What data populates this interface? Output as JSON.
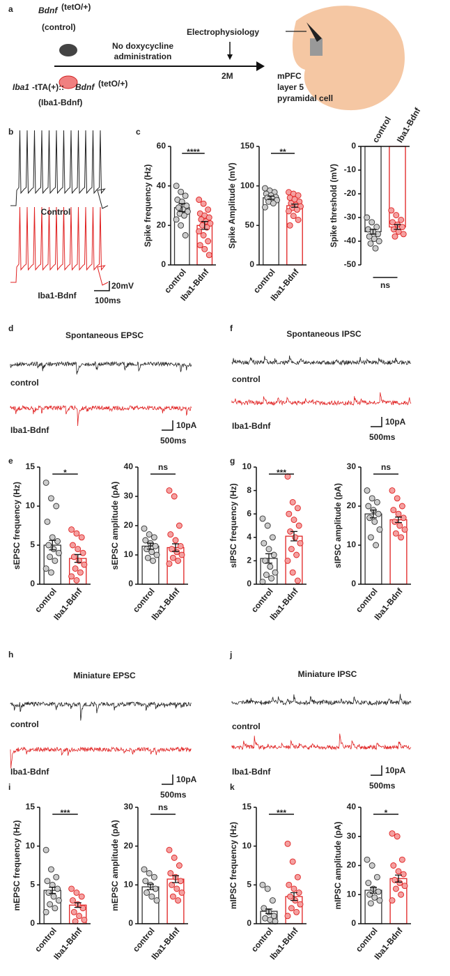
{
  "panel_letters": [
    "a",
    "b",
    "c",
    "d",
    "f",
    "e",
    "g",
    "h",
    "j",
    "i",
    "k"
  ],
  "panel_a": {
    "control_gene": "Bdnf",
    "control_genotype": "(tetO/+)",
    "control_label": "(control)",
    "treatment": [
      "No doxycycline",
      "administration"
    ],
    "procedure": "Electrophysiology",
    "timepoint": "2M",
    "tg_gene": "Iba1",
    "tg_construct": "-tTA(+)::",
    "tg_bdnf": "Bdnf",
    "tg_genotype": "(tetO/+)",
    "tg_label": "(Iba1-Bdnf)",
    "region": [
      "mPFC",
      "layer 5",
      "pyramidal cell"
    ]
  },
  "traces": [
    {
      "labels": [
        "Control",
        "Iba1-Bdnf"
      ],
      "scale": [
        "20mV",
        "100ms"
      ]
    },
    {
      "title": "Spontaneous EPSC",
      "labels": [
        "control",
        "Iba1-Bdnf"
      ],
      "scale": [
        "10pA",
        "500ms"
      ]
    },
    {
      "title": "Spontaneous IPSC",
      "labels": [
        "control",
        "Iba1-Bdnf"
      ],
      "scale": [
        "10pA",
        "500ms"
      ]
    },
    {
      "title": "Miniature EPSC",
      "labels": [
        "control",
        "Iba1-Bdnf"
      ],
      "scale": [
        "10pA",
        "500ms"
      ]
    },
    {
      "title": "Miniature IPSC",
      "labels": [
        "control",
        "Iba1-Bdnf"
      ],
      "scale": [
        "10pA",
        "500ms"
      ]
    }
  ],
  "chart_data": [
    {
      "type": "bar",
      "ylabel": "Spike frequency (Hz)",
      "categories": [
        "control",
        "Iba1-Bdnf"
      ],
      "values": [
        29,
        20
      ],
      "errors": [
        2,
        2
      ],
      "points": [
        [
          40,
          37,
          35,
          33,
          32,
          30,
          29,
          28,
          27,
          26,
          25,
          23,
          20,
          15
        ],
        [
          33,
          31,
          28,
          26,
          25,
          24,
          23,
          22,
          21,
          20,
          19,
          17,
          15,
          12,
          10,
          8,
          5
        ]
      ],
      "colors": [
        "#333333",
        "#e02020"
      ],
      "point_colors": [
        "#cccccc",
        "#f4a0a0"
      ],
      "ylim": [
        0,
        60
      ],
      "yticks": [
        0,
        20,
        40,
        60
      ],
      "significance": "****"
    },
    {
      "type": "bar",
      "ylabel": "Spike Amplitude (mV)",
      "categories": [
        "control",
        "Iba1-Bdnf"
      ],
      "values": [
        85,
        75
      ],
      "errors": [
        2,
        2
      ],
      "points": [
        [
          97,
          94,
          92,
          90,
          88,
          86,
          85,
          84,
          82,
          80,
          78,
          73
        ],
        [
          92,
          90,
          88,
          85,
          83,
          80,
          78,
          76,
          74,
          72,
          70,
          68,
          62,
          57,
          50
        ]
      ],
      "colors": [
        "#333333",
        "#e02020"
      ],
      "point_colors": [
        "#cccccc",
        "#f4a0a0"
      ],
      "ylim": [
        0,
        150
      ],
      "yticks": [
        0,
        50,
        100,
        150
      ],
      "significance": "**"
    },
    {
      "type": "bar",
      "ylabel": "Spike threshold (mV)",
      "categories": [
        "control",
        "Iba1-Bdnf"
      ],
      "values": [
        -36,
        -34
      ],
      "errors": [
        1,
        1
      ],
      "points": [
        [
          -30,
          -32,
          -34,
          -35,
          -36,
          -37,
          -38,
          -39,
          -40,
          -41,
          -43
        ],
        [
          -27,
          -29,
          -31,
          -32,
          -33,
          -34,
          -35,
          -36,
          -37,
          -38
        ]
      ],
      "colors": [
        "#333333",
        "#e02020"
      ],
      "point_colors": [
        "#cccccc",
        "#f4a0a0"
      ],
      "ylim": [
        -50,
        0
      ],
      "yticks": [
        0,
        -10,
        -20,
        -30,
        -40,
        -50
      ],
      "significance": "ns"
    },
    {
      "type": "bar",
      "ylabel": "sEPSC frequency (Hz)",
      "categories": [
        "control",
        "Iba1-Bdnf"
      ],
      "values": [
        5,
        3.3
      ],
      "errors": [
        0.6,
        0.5
      ],
      "points": [
        [
          13,
          11,
          10,
          8,
          6,
          5.5,
          5,
          4.5,
          4,
          3.5,
          3,
          2,
          1.5
        ],
        [
          7,
          6.5,
          6,
          5,
          4.5,
          4,
          3.5,
          3,
          2.5,
          2,
          1.5,
          1,
          0.5
        ]
      ],
      "colors": [
        "#333333",
        "#e02020"
      ],
      "point_colors": [
        "#cccccc",
        "#f4a0a0"
      ],
      "ylim": [
        0,
        15
      ],
      "yticks": [
        0,
        5,
        10,
        15
      ],
      "significance": "*"
    },
    {
      "type": "bar",
      "ylabel": "sEPSC amplitude (pA)",
      "categories": [
        "control",
        "Iba1-Bdnf"
      ],
      "values": [
        13,
        12.5
      ],
      "errors": [
        1,
        1.3
      ],
      "points": [
        [
          19,
          17,
          16,
          15,
          14,
          13,
          12,
          11,
          10,
          9,
          8
        ],
        [
          32,
          30,
          20,
          17,
          15,
          13,
          12,
          11,
          10,
          9,
          8,
          7
        ]
      ],
      "colors": [
        "#333333",
        "#e02020"
      ],
      "point_colors": [
        "#cccccc",
        "#f4a0a0"
      ],
      "ylim": [
        0,
        40
      ],
      "yticks": [
        0,
        10,
        20,
        30,
        40
      ],
      "significance": "ns"
    },
    {
      "type": "bar",
      "ylabel": "sIPSC frequency (Hz)",
      "categories": [
        "control",
        "Iba1-Bdnf"
      ],
      "values": [
        2.2,
        4.1
      ],
      "errors": [
        0.4,
        0.4
      ],
      "points": [
        [
          5.6,
          5,
          4,
          3.5,
          3,
          2.5,
          2,
          1.5,
          1,
          0.8,
          0.5,
          0.2
        ],
        [
          9.2,
          7,
          6.5,
          6,
          5.5,
          5,
          4.5,
          4,
          3.5,
          3,
          2.5,
          2,
          1,
          0.3
        ]
      ],
      "colors": [
        "#333333",
        "#e02020"
      ],
      "point_colors": [
        "#cccccc",
        "#f4a0a0"
      ],
      "ylim": [
        0,
        10
      ],
      "yticks": [
        0,
        2,
        4,
        6,
        8,
        10
      ],
      "significance": "***"
    },
    {
      "type": "bar",
      "ylabel": "sIPSC amplitude (pA)",
      "categories": [
        "control",
        "Iba1-Bdnf"
      ],
      "values": [
        18,
        16.5
      ],
      "errors": [
        1,
        0.7
      ],
      "points": [
        [
          24,
          22,
          21,
          20,
          19,
          18,
          17,
          16,
          14,
          12,
          10
        ],
        [
          24,
          22,
          20,
          19,
          18,
          17,
          16,
          15,
          14,
          13,
          12
        ]
      ],
      "colors": [
        "#333333",
        "#e02020"
      ],
      "point_colors": [
        "#cccccc",
        "#f4a0a0"
      ],
      "ylim": [
        0,
        30
      ],
      "yticks": [
        0,
        10,
        20,
        30
      ],
      "significance": "ns"
    },
    {
      "type": "bar",
      "ylabel": "mEPSC frequency (Hz)",
      "categories": [
        "control",
        "Iba1-Bdnf"
      ],
      "values": [
        4.3,
        2.4
      ],
      "errors": [
        0.4,
        0.3
      ],
      "points": [
        [
          9.5,
          7,
          6,
          5.5,
          5,
          4.5,
          4,
          3.5,
          3,
          2.5,
          2,
          1.5
        ],
        [
          4.5,
          4,
          3.5,
          3,
          2.5,
          2,
          1.5,
          1,
          0.5,
          0.3
        ]
      ],
      "colors": [
        "#333333",
        "#e02020"
      ],
      "point_colors": [
        "#cccccc",
        "#f4a0a0"
      ],
      "ylim": [
        0,
        15
      ],
      "yticks": [
        0,
        5,
        10,
        15
      ],
      "significance": "***"
    },
    {
      "type": "bar",
      "ylabel": "mEPSC amplitude (pA)",
      "categories": [
        "control",
        "Iba1-Bdnf"
      ],
      "values": [
        9.5,
        11.5
      ],
      "errors": [
        0.7,
        0.9
      ],
      "points": [
        [
          14,
          13,
          12,
          11,
          10,
          9,
          8,
          7,
          6
        ],
        [
          19,
          17,
          15,
          13,
          12,
          11,
          10,
          9,
          8,
          7,
          6
        ]
      ],
      "colors": [
        "#333333",
        "#e02020"
      ],
      "point_colors": [
        "#cccccc",
        "#f4a0a0"
      ],
      "ylim": [
        0,
        30
      ],
      "yticks": [
        0,
        10,
        20,
        30
      ],
      "significance": "ns"
    },
    {
      "type": "bar",
      "ylabel": "mIPSC frequency (Hz)",
      "categories": [
        "control",
        "Iba1-Bdnf"
      ],
      "values": [
        1.6,
        3.5
      ],
      "errors": [
        0.3,
        0.5
      ],
      "points": [
        [
          5,
          4.5,
          3,
          2,
          1.5,
          1,
          0.7,
          0.5,
          0.3
        ],
        [
          10.3,
          8,
          6,
          5,
          4.5,
          4,
          3.5,
          3,
          2.5,
          2,
          1.5,
          1
        ]
      ],
      "colors": [
        "#333333",
        "#e02020"
      ],
      "point_colors": [
        "#cccccc",
        "#f4a0a0"
      ],
      "ylim": [
        0,
        15
      ],
      "yticks": [
        0,
        5,
        10,
        15
      ],
      "significance": "***"
    },
    {
      "type": "bar",
      "ylabel": "mIPSC amplitude (pA)",
      "categories": [
        "control",
        "Iba1-Bdnf"
      ],
      "values": [
        11.5,
        15.5
      ],
      "errors": [
        1,
        1.2
      ],
      "points": [
        [
          22,
          20,
          16,
          14,
          12,
          11,
          10,
          9,
          8,
          7
        ],
        [
          31,
          30,
          22,
          20,
          18,
          17,
          15,
          14,
          13,
          12,
          10,
          8
        ]
      ],
      "colors": [
        "#333333",
        "#e02020"
      ],
      "point_colors": [
        "#cccccc",
        "#f4a0a0"
      ],
      "ylim": [
        0,
        40
      ],
      "yticks": [
        0,
        10,
        20,
        30,
        40
      ],
      "significance": "*"
    }
  ]
}
